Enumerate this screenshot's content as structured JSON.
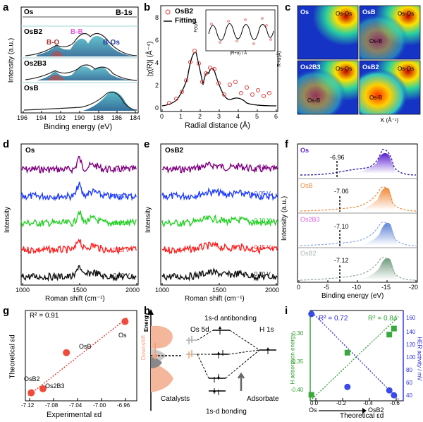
{
  "figure": {
    "panel_letters": [
      "a",
      "b",
      "c",
      "d",
      "e",
      "f",
      "g",
      "h",
      "i"
    ]
  },
  "panel_a": {
    "title": "B-1s",
    "rows": [
      "Os",
      "OsB2",
      "Os2B3",
      "OsB"
    ],
    "peaks": {
      "b_o": "B-O",
      "b_b": "B-B",
      "b_os": "B-Os"
    },
    "xlabel": "Binding energy (eV)",
    "ylabel": "Intensity (a.u.)",
    "xticks": [
      "196",
      "194",
      "192",
      "190",
      "188",
      "186",
      "184"
    ]
  },
  "panel_b": {
    "legend": {
      "data": "OsB2",
      "fit": "Fitting"
    },
    "xlabel": "Radial distance (Å)",
    "ylabel": "|χ(R)| (Å⁻⁴)",
    "xticks": [
      "0",
      "1",
      "2",
      "3",
      "4",
      "5",
      "6"
    ],
    "yticks": [
      "0",
      "2",
      "4",
      "6",
      "8"
    ],
    "inset": {
      "xlabel": "(R+α) / Å",
      "ylabel": "F(k)/k³"
    }
  },
  "panel_c": {
    "ylabel": "R+α(Å)",
    "xlabel": "K (Å⁻¹)",
    "maps": [
      {
        "name": "Os",
        "labels": [
          "Os-Os"
        ]
      },
      {
        "name": "OsB",
        "labels": [
          "Os-Os",
          "Os-B"
        ]
      },
      {
        "name": "Os2B3",
        "labels": [
          "Os-Os",
          "Os-B"
        ]
      },
      {
        "name": "OsB2",
        "labels": [
          "Os-Os",
          "Os-B"
        ]
      }
    ]
  },
  "panel_d": {
    "sample": "Os",
    "voltages": [
      "0 V",
      "+0.05 V",
      "+0.10 V",
      "+0.15 V",
      "+0.20 V"
    ],
    "colors": [
      "#800080",
      "#1f3cff",
      "#22d022",
      "#ff1e1e",
      "#111111"
    ],
    "xlabel": "Roman shift (cm⁻¹)",
    "ylabel": "Intensity",
    "xticks": [
      "1000",
      "1500",
      "2000"
    ]
  },
  "panel_e": {
    "sample": "OsB2",
    "voltages": [
      "0 V",
      "+0.05 V",
      "+0.10 V",
      "+0.15 V",
      "+0.20 V"
    ],
    "xlabel": "Roman shift (cm⁻¹)",
    "ylabel": "Intensity",
    "xticks": [
      "1000",
      "1500",
      "2000"
    ]
  },
  "panel_f": {
    "samples": [
      {
        "name": "Os",
        "value": "-6.96",
        "color": "#5a1fd0"
      },
      {
        "name": "OsB",
        "value": "-7.06",
        "color": "#f08a3a"
      },
      {
        "name": "Os2B3",
        "value": "-7.10",
        "color": "#5b82d6"
      },
      {
        "name": "OsB2",
        "value": "-7.12",
        "color": "#6f9a7e"
      }
    ],
    "xlabel": "Binding energy (eV)",
    "ylabel": "Intensity (a.u.)",
    "xticks": [
      "0",
      "-5",
      "-10",
      "-15",
      "-20"
    ]
  },
  "panel_g": {
    "r2": "R² = 0.91",
    "xlabel": "Experimental εd",
    "ylabel": "Theoretical εd",
    "xticks": [
      "-7.12",
      "-7.08",
      "-7.04",
      "-7.00",
      "-6.96"
    ],
    "point_labels": [
      "Os",
      "OsB",
      "Os2B3",
      "OsB2"
    ]
  },
  "panel_h": {
    "energy_label": "Energy",
    "downshift": "Downshift",
    "catalysts": "Catalysts",
    "os_5d": "Os 5d",
    "h_1s": "H 1s",
    "antibonding": "1s-d antibonding",
    "bonding": "1s-d bonding",
    "adsorbate": "Adsorbate"
  },
  "panel_i": {
    "r2_left": "R² = 0.72",
    "r2_right": "R² = 0.84",
    "xlabel": "Theoretical εd",
    "ylabel_left": "H adsorption energy",
    "ylabel_right": "HER activity / mV",
    "xticks": [
      "0.0",
      "-0.2",
      "-0.4",
      "-0.6"
    ],
    "yticks_left": [
      "-0.30",
      "-0.35",
      "-0.40"
    ],
    "yticks_right": [
      "40",
      "60",
      "80",
      "100",
      "120",
      "140",
      "160"
    ],
    "arrow_left": "Os",
    "arrow_right": "OsB2"
  },
  "chart_data": [
    {
      "type": "scatter",
      "panel": "g",
      "title": "",
      "xlabel": "Experimental εd",
      "ylabel": "Theoretical εd",
      "xlim": [
        -7.13,
        -6.94
      ],
      "ylim": [
        -0.7,
        0.2
      ],
      "points": [
        {
          "label": "Os",
          "x": -6.96,
          "y": 0.09
        },
        {
          "label": "OsB",
          "x": -7.06,
          "y": -0.22
        },
        {
          "label": "Os2B3",
          "x": -7.1,
          "y": -0.58
        },
        {
          "label": "OsB2",
          "x": -7.12,
          "y": -0.62
        }
      ],
      "fit_r2": 0.91
    },
    {
      "type": "scatter",
      "panel": "i",
      "xlabel": "Theoretical εd",
      "xlim": [
        0.1,
        -0.7
      ],
      "series": [
        {
          "name": "H adsorption energy",
          "color": "#2e9e2e",
          "x": [
            0.09,
            -0.22,
            -0.58,
            -0.62
          ],
          "y": [
            -0.42,
            -0.35,
            -0.32,
            -0.31
          ]
        },
        {
          "name": "HER activity / mV",
          "color": "#2a2ad8",
          "x": [
            0.09,
            -0.22,
            -0.58,
            -0.62
          ],
          "y": [
            155,
            50,
            45,
            38
          ]
        }
      ],
      "ylim_left": [
        -0.43,
        -0.28
      ],
      "ylim_right": [
        30,
        160
      ]
    }
  ]
}
